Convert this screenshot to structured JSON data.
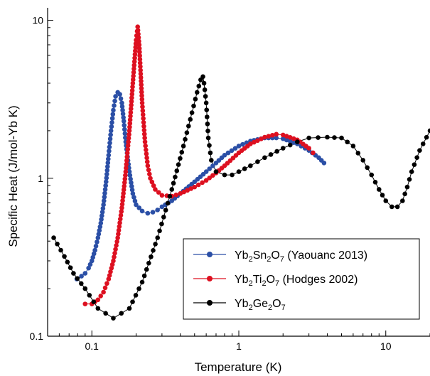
{
  "chart_data": {
    "type": "scatter",
    "title": "",
    "xlabel": "Temperature (K)",
    "ylabel": "Specific Heat (J/mol-Yb K)",
    "xscale": "log",
    "yscale": "log",
    "xlim": [
      0.05,
      20
    ],
    "ylim": [
      0.1,
      12
    ],
    "x_tick_labels": [
      "0.1",
      "1",
      "10"
    ],
    "y_tick_labels": [
      "0.1",
      "1",
      "10"
    ],
    "grid": false,
    "legend_position": "lower-right",
    "series": [
      {
        "name_parts": {
          "a": "Yb",
          "s1": "2",
          "b": "Sn",
          "s2": "2",
          "c": "O",
          "s3": "7",
          "suffix": " (Yaouanc 2013)"
        },
        "color": "#2b4fa6",
        "x": [
          0.079,
          0.085,
          0.09,
          0.095,
          0.1,
          0.105,
          0.11,
          0.115,
          0.12,
          0.125,
          0.13,
          0.135,
          0.14,
          0.145,
          0.15,
          0.155,
          0.16,
          0.165,
          0.17,
          0.18,
          0.19,
          0.2,
          0.22,
          0.24,
          0.26,
          0.28,
          0.3,
          0.35,
          0.4,
          0.5,
          0.6,
          0.7,
          0.8,
          1.0,
          1.2,
          1.5,
          1.8,
          2.0,
          2.5,
          3.0,
          3.5,
          3.8
        ],
        "y": [
          0.23,
          0.24,
          0.25,
          0.27,
          0.3,
          0.35,
          0.42,
          0.52,
          0.68,
          0.95,
          1.4,
          2.0,
          2.7,
          3.3,
          3.5,
          3.4,
          3.0,
          2.3,
          1.7,
          1.1,
          0.8,
          0.68,
          0.62,
          0.6,
          0.61,
          0.63,
          0.66,
          0.72,
          0.8,
          0.95,
          1.1,
          1.25,
          1.4,
          1.6,
          1.72,
          1.8,
          1.8,
          1.78,
          1.65,
          1.5,
          1.35,
          1.25
        ]
      },
      {
        "name_parts": {
          "a": "Yb",
          "s1": "2",
          "b": "Ti",
          "s2": "2",
          "c": "O",
          "s3": "7",
          "suffix": " (Hodges 2002)"
        },
        "color": "#dd1020",
        "x": [
          0.09,
          0.1,
          0.11,
          0.12,
          0.13,
          0.14,
          0.15,
          0.16,
          0.17,
          0.18,
          0.19,
          0.2,
          0.205,
          0.21,
          0.22,
          0.23,
          0.24,
          0.25,
          0.27,
          0.3,
          0.35,
          0.4,
          0.5,
          0.6,
          0.7,
          0.8,
          1.0,
          1.2,
          1.5,
          1.8,
          2.0,
          2.5,
          3.0,
          3.2
        ],
        "y": [
          0.16,
          0.16,
          0.17,
          0.19,
          0.23,
          0.3,
          0.42,
          0.65,
          1.1,
          2.0,
          4.0,
          7.5,
          9.1,
          7.0,
          3.0,
          1.7,
          1.2,
          1.0,
          0.85,
          0.78,
          0.77,
          0.8,
          0.88,
          0.97,
          1.08,
          1.2,
          1.45,
          1.65,
          1.82,
          1.9,
          1.88,
          1.75,
          1.55,
          1.45
        ]
      },
      {
        "name_parts": {
          "a": "Yb",
          "s1": "2",
          "b": "Ge",
          "s2": "2",
          "c": "O",
          "s3": "7",
          "suffix": ""
        },
        "color": "#000000",
        "x": [
          0.055,
          0.065,
          0.075,
          0.09,
          0.11,
          0.14,
          0.18,
          0.22,
          0.28,
          0.35,
          0.42,
          0.48,
          0.52,
          0.55,
          0.57,
          0.58,
          0.6,
          0.62,
          0.65,
          0.7,
          0.8,
          0.9,
          1.0,
          1.2,
          1.5,
          2.0,
          2.5,
          3.0,
          4.0,
          5.0,
          6.0,
          7.0,
          8.0,
          9.0,
          10.0,
          11.0,
          12.0,
          13.0,
          14.0,
          15.0,
          17.0,
          20.0
        ],
        "y": [
          0.42,
          0.32,
          0.25,
          0.2,
          0.15,
          0.13,
          0.15,
          0.22,
          0.42,
          0.85,
          1.6,
          2.6,
          3.5,
          4.2,
          4.4,
          4.0,
          3.0,
          1.8,
          1.3,
          1.1,
          1.05,
          1.05,
          1.1,
          1.2,
          1.35,
          1.55,
          1.7,
          1.8,
          1.82,
          1.8,
          1.6,
          1.3,
          1.05,
          0.85,
          0.72,
          0.66,
          0.66,
          0.72,
          0.88,
          1.1,
          1.5,
          2.0
        ]
      }
    ]
  }
}
